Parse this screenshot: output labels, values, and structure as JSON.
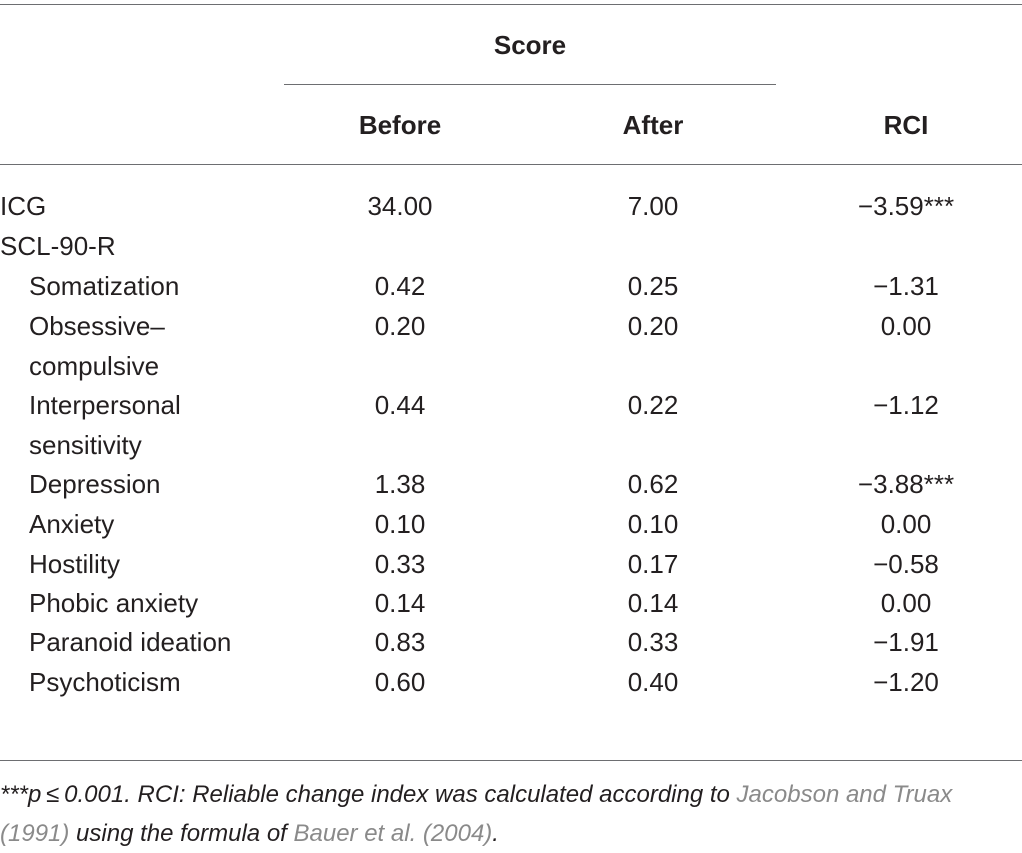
{
  "header": {
    "group": "Score",
    "before": "Before",
    "after": "After",
    "rci": "RCI"
  },
  "rows": [
    {
      "label": "ICG",
      "label2": "",
      "before": "34.00",
      "after": "7.00",
      "rci": "−3.59***"
    },
    {
      "label": "SCL-90-R",
      "label2": "",
      "before": "",
      "after": "",
      "rci": ""
    },
    {
      "label": "Somatization",
      "label2": "",
      "before": "0.42",
      "after": "0.25",
      "rci": "−1.31"
    },
    {
      "label": "Obsessive–",
      "label2": "compulsive",
      "before": "0.20",
      "after": "0.20",
      "rci": "0.00"
    },
    {
      "label": "Interpersonal",
      "label2": "sensitivity",
      "before": "0.44",
      "after": "0.22",
      "rci": "−1.12"
    },
    {
      "label": "Depression",
      "label2": "",
      "before": "1.38",
      "after": "0.62",
      "rci": "−3.88***"
    },
    {
      "label": "Anxiety",
      "label2": "",
      "before": "0.10",
      "after": "0.10",
      "rci": "0.00"
    },
    {
      "label": "Hostility",
      "label2": "",
      "before": "0.33",
      "after": "0.17",
      "rci": "−0.58"
    },
    {
      "label": "Phobic anxiety",
      "label2": "",
      "before": "0.14",
      "after": "0.14",
      "rci": "0.00"
    },
    {
      "label": "Paranoid ideation",
      "label2": "",
      "before": "0.83",
      "after": "0.33",
      "rci": "−1.91"
    },
    {
      "label": "Psychoticism",
      "label2": "",
      "before": "0.60",
      "after": "0.40",
      "rci": "−1.20"
    }
  ],
  "footnote": {
    "part1": "***p ≤ 0.001. RCI: Reliable change index was calculated according to ",
    "ref1": "Jacobson and Truax (1991)",
    "part2": " using the formula of ",
    "ref2": "Bauer et al. (2004)",
    "part3": "."
  }
}
